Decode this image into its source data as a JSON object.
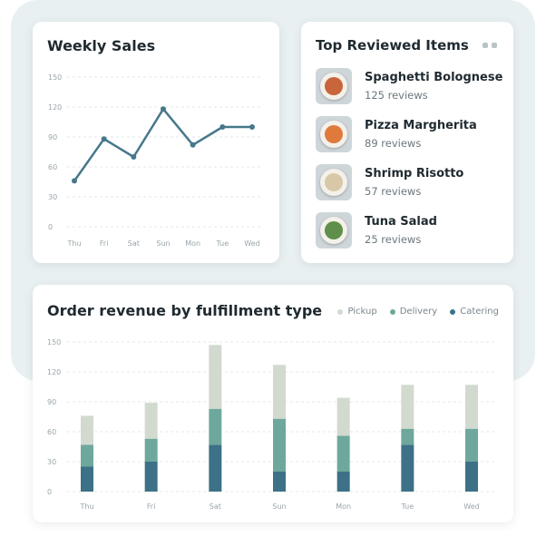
{
  "colors": {
    "line": "#46788a",
    "pickup": "#d2dad0",
    "delivery": "#6ea89d",
    "catering": "#3d7187",
    "grid": "#e2e8ea"
  },
  "weekly_sales": {
    "title": "Weekly Sales"
  },
  "top_items": {
    "title": "Top Reviewed Items",
    "menu_icon": "more-dots-icon",
    "items": [
      {
        "name": "Spaghetti Bolognese",
        "reviews": "125 reviews",
        "food_color": "#c9653a"
      },
      {
        "name": "Pizza Margherita",
        "reviews": "89 reviews",
        "food_color": "#e07a3c"
      },
      {
        "name": "Shrimp Risotto",
        "reviews": "57 reviews",
        "food_color": "#d9c8a8"
      },
      {
        "name": "Tuna Salad",
        "reviews": "25 reviews",
        "food_color": "#5f8f4a"
      }
    ]
  },
  "revenue": {
    "title": "Order revenue by fulfillment type"
  },
  "chart_data": [
    {
      "type": "line",
      "title": "Weekly Sales",
      "categories": [
        "Thu",
        "Fri",
        "Sat",
        "Sun",
        "Mon",
        "Tue",
        "Wed"
      ],
      "values": [
        46,
        88,
        70,
        118,
        82,
        100,
        100
      ],
      "ylim": [
        0,
        150
      ],
      "yticks": [
        0,
        30,
        60,
        90,
        120,
        150
      ],
      "grid": true
    },
    {
      "type": "bar",
      "stacked": true,
      "title": "Order revenue by fulfillment type",
      "categories": [
        "Thu",
        "Fri",
        "Sat",
        "Sun",
        "Mon",
        "Tue",
        "Wed"
      ],
      "series": [
        {
          "name": "Catering",
          "values": [
            25,
            30,
            47,
            20,
            20,
            47,
            30
          ]
        },
        {
          "name": "Delivery",
          "values": [
            22,
            23,
            36,
            53,
            36,
            16,
            33
          ]
        },
        {
          "name": "Pickup",
          "values": [
            29,
            36,
            64,
            54,
            38,
            44,
            44
          ]
        }
      ],
      "legend": [
        "Pickup",
        "Delivery",
        "Catering"
      ],
      "legend_position": "top-right",
      "ylim": [
        0,
        150
      ],
      "yticks": [
        0,
        30,
        60,
        90,
        120,
        150
      ],
      "grid": true
    }
  ]
}
